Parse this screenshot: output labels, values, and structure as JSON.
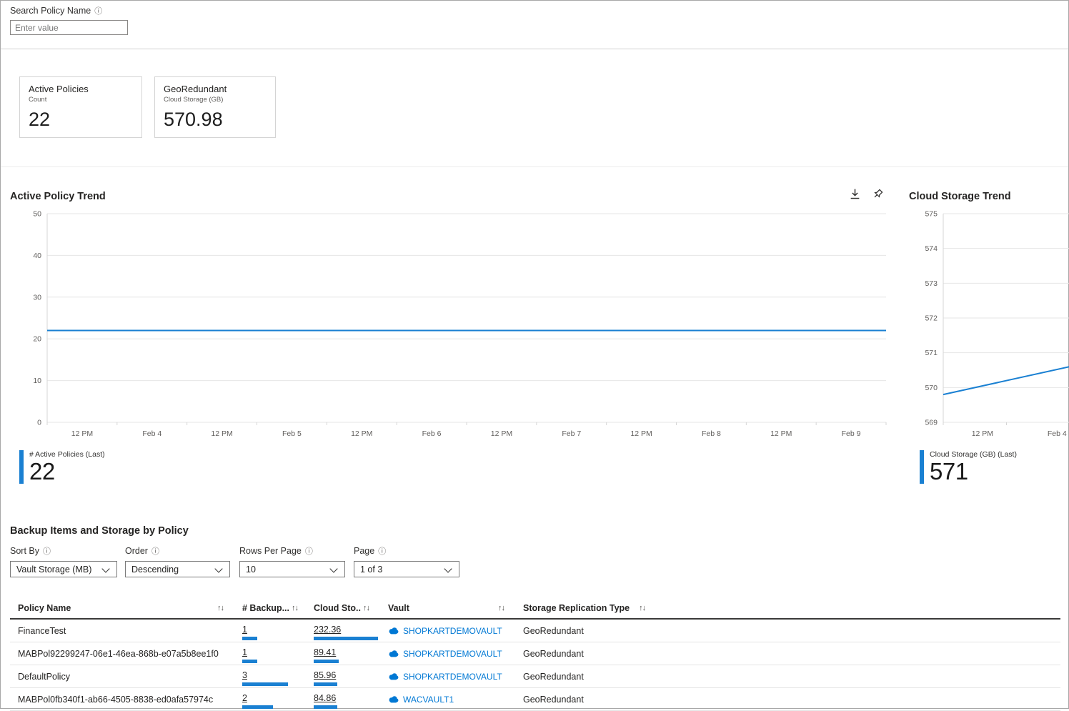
{
  "colors": {
    "accent": "#0078d4",
    "line": "#1a80d2",
    "bar": "#1a80d2"
  },
  "icons": {
    "info": "ⓘ",
    "sort": "↑↓"
  },
  "search": {
    "label": "Search Policy Name",
    "placeholder": "Enter value"
  },
  "cards": [
    {
      "title": "Active Policies",
      "subtitle": "Count",
      "value": "22"
    },
    {
      "title": "GeoRedundant",
      "subtitle": "Cloud Storage (GB)",
      "value": "570.98"
    }
  ],
  "chart_data": [
    {
      "type": "line",
      "title": "Active Policy Trend",
      "x": [
        "12 PM",
        "Feb 4",
        "12 PM",
        "Feb 5",
        "12 PM",
        "Feb 6",
        "12 PM",
        "Feb 7",
        "12 PM",
        "Feb 8",
        "12 PM",
        "Feb 9"
      ],
      "series": [
        {
          "name": "# Active Policies",
          "values": [
            22,
            22,
            22,
            22,
            22,
            22,
            22,
            22,
            22,
            22,
            22,
            22
          ]
        }
      ],
      "ylim": [
        0,
        50
      ],
      "yticks": [
        0,
        10,
        20,
        30,
        40,
        50
      ],
      "grid": true,
      "legend": {
        "label": "# Active Policies (Last)",
        "value": "22"
      }
    },
    {
      "type": "line",
      "title": "Cloud Storage Trend",
      "x": [
        "12 PM",
        "Feb 4"
      ],
      "x_positions": [
        0.31,
        0.9
      ],
      "series": [
        {
          "name": "Cloud Storage (GB)",
          "values": [
            569.8,
            570.6
          ]
        }
      ],
      "ylim": [
        569,
        575
      ],
      "yticks": [
        569,
        570,
        571,
        572,
        573,
        574,
        575
      ],
      "grid": true,
      "legend": {
        "label": "Cloud Storage (GB) (Last)",
        "value": "571"
      }
    }
  ],
  "section": {
    "title": "Backup Items and Storage by Policy"
  },
  "filters": {
    "items": [
      {
        "label": "Sort By",
        "value": "Vault Storage (MB)"
      },
      {
        "label": "Order",
        "value": "Descending"
      },
      {
        "label": "Rows Per Page",
        "value": "10"
      },
      {
        "label": "Page",
        "value": "1 of 3"
      }
    ]
  },
  "table": {
    "columns": [
      {
        "label": "Policy Name"
      },
      {
        "label": "# Backup..."
      },
      {
        "label": "Cloud Sto.."
      },
      {
        "label": "Vault"
      },
      {
        "label": "Storage Replication Type"
      }
    ],
    "rows": [
      {
        "name": "FinanceTest",
        "backups": "1",
        "cloud": "232.36",
        "vault": "SHOPKARTDEMOVAULT",
        "replication": "GeoRedundant"
      },
      {
        "name": "MABPol92299247-06e1-46ea-868b-e07a5b8ee1f0",
        "backups": "1",
        "cloud": "89.41",
        "vault": "SHOPKARTDEMOVAULT",
        "replication": "GeoRedundant"
      },
      {
        "name": "DefaultPolicy",
        "backups": "3",
        "cloud": "85.96",
        "vault": "SHOPKARTDEMOVAULT",
        "replication": "GeoRedundant"
      },
      {
        "name": "MABPol0fb340f1-ab66-4505-8838-ed0afa57974c",
        "backups": "2",
        "cloud": "84.86",
        "vault": "WACVAULT1",
        "replication": "GeoRedundant"
      }
    ]
  }
}
